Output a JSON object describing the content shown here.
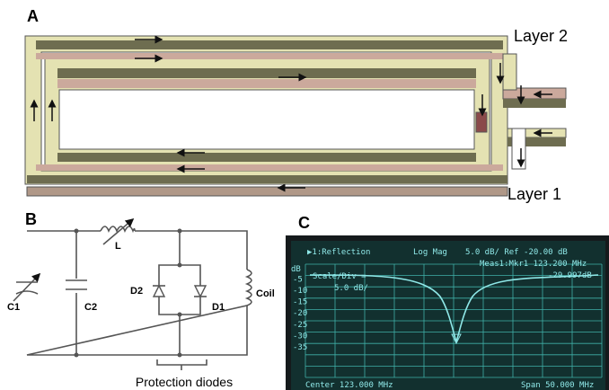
{
  "panels": {
    "a": {
      "label": "A",
      "layer_2": "Layer 2",
      "layer_1": "Layer 1"
    },
    "b": {
      "label": "B",
      "components": [
        "C1",
        "C2",
        "L",
        "D2",
        "D1",
        "Coil"
      ],
      "caption": "Protection diodes"
    },
    "c": {
      "label": "C",
      "header": [
        "▶1:Reflection",
        "Log Mag",
        "5.0 dB/ Ref -20.00 dB"
      ],
      "measurement": "Meas1:Mkr1  123.200 MHz",
      "marker_value": "-29.997dB",
      "unit": "dB",
      "scale": "Scale/Div =",
      "scale_value": "5.0 dB/",
      "y_labels": [
        "-5",
        "-10",
        "-15",
        "-20",
        "-25",
        "-30",
        "-35"
      ],
      "center": "Center 123.000 MHz",
      "span": "Span 50.000 MHz"
    }
  }
}
